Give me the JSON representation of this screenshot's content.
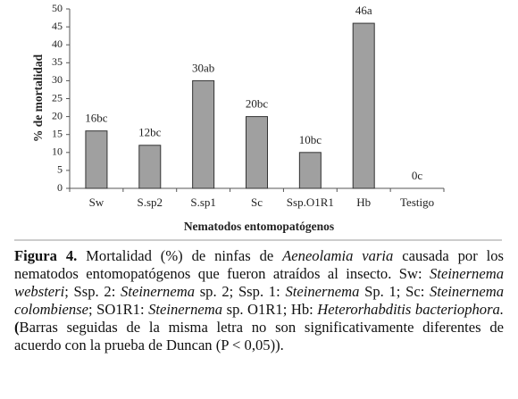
{
  "chart_data": {
    "type": "bar",
    "categories": [
      "Sw",
      "S.sp2",
      "S.sp1",
      "Sc",
      "Ssp.O1R1",
      "Hb",
      "Testigo"
    ],
    "values": [
      16,
      12,
      30,
      20,
      10,
      46,
      0
    ],
    "value_labels": [
      "16bc",
      "12bc",
      "30ab",
      "20bc",
      "10bc",
      "46a",
      "0c"
    ],
    "color": "#a0a0a0",
    "xlabel": "Nematodos entomopatógenos",
    "ylabel": "% de mortalidad",
    "ylim": [
      0,
      50
    ],
    "yticks": [
      0,
      5,
      10,
      15,
      20,
      25,
      30,
      35,
      40,
      45,
      50
    ],
    "grid": false
  },
  "caption": {
    "runs": [
      {
        "text": "Figura 4.",
        "style": "bold"
      },
      {
        "text": " Mortalidad (%) de ninfas de ",
        "style": "normal"
      },
      {
        "text": "Aeneolamia varia",
        "style": "italic"
      },
      {
        "text": " causada por los nematodos entomopatógenos que fueron atraídos al insecto. Sw: ",
        "style": "normal"
      },
      {
        "text": "Steinernema websteri",
        "style": "italic"
      },
      {
        "text": "; Ssp. 2: ",
        "style": "normal"
      },
      {
        "text": "Steinernema",
        "style": "italic"
      },
      {
        "text": " sp. 2; Ssp. 1: ",
        "style": "normal"
      },
      {
        "text": "Steinernema",
        "style": "italic"
      },
      {
        "text": " Sp. 1; Sc: ",
        "style": "normal"
      },
      {
        "text": "Steinernema colombiense",
        "style": "italic"
      },
      {
        "text": "; SO1R1: ",
        "style": "normal"
      },
      {
        "text": "Steinernema",
        "style": "italic"
      },
      {
        "text": " sp. O1R1; Hb: ",
        "style": "normal"
      },
      {
        "text": "Heterorhabditis bacteriophora.",
        "style": "italic"
      },
      {
        "text": " (",
        "style": "bold"
      },
      {
        "text": "Barras seguidas de la misma letra no son significativamente diferentes de acuerdo con la prueba de Duncan (P < 0,05)).",
        "style": "normal"
      }
    ]
  }
}
